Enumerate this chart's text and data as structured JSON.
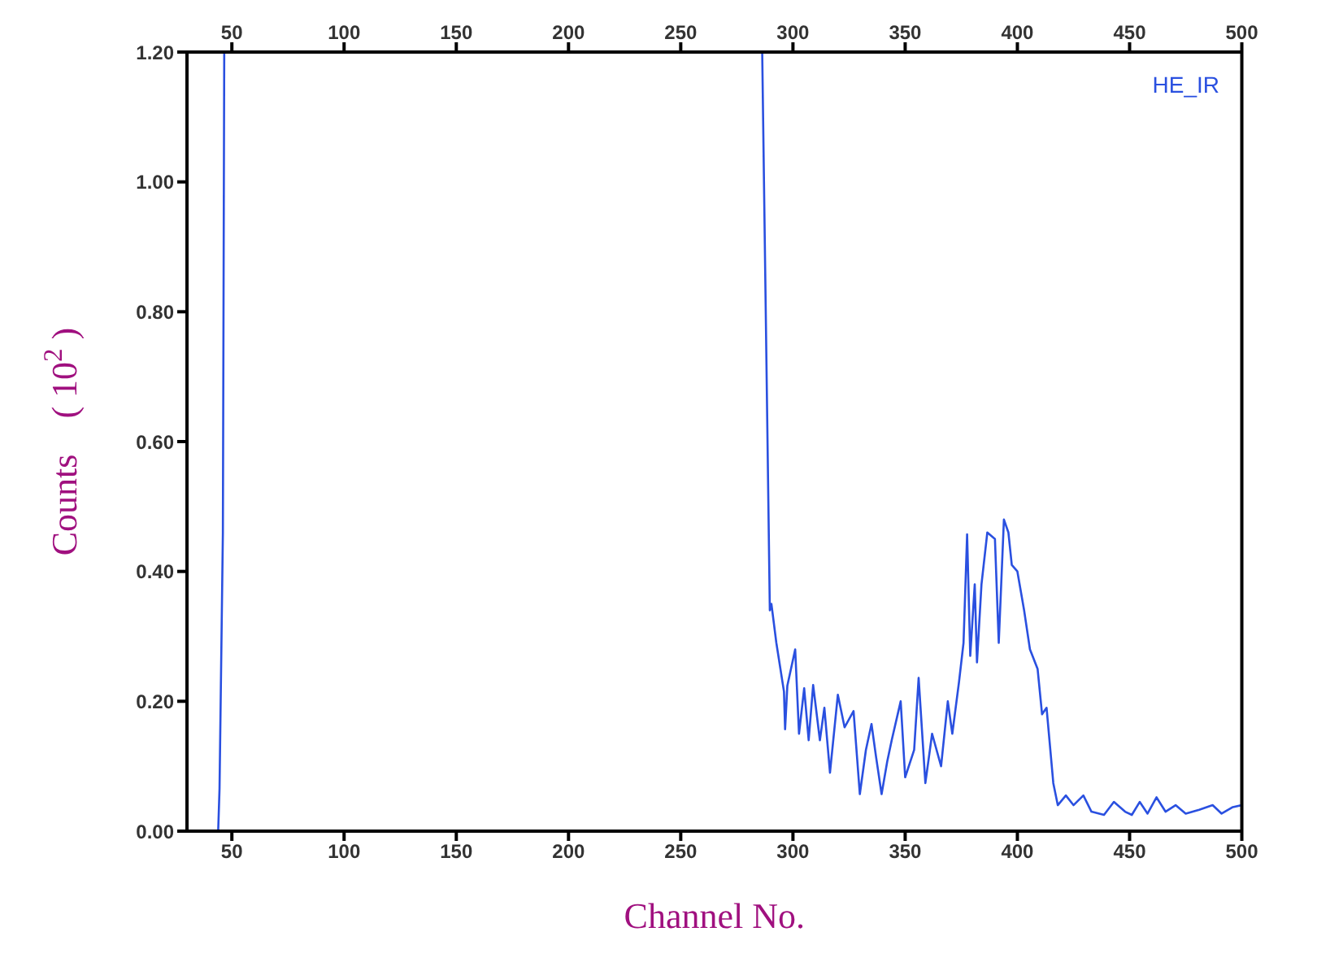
{
  "chart_data": {
    "type": "line",
    "xlabel": "Channel No.",
    "ylabel": "Counts    ( 10$^{2}$ )",
    "legend": "top right",
    "grid": false,
    "marker": "none",
    "line_style": "solid",
    "xlim": [
      30,
      500
    ],
    "xticks": [
      50,
      100,
      150,
      200,
      250,
      300,
      350,
      400,
      450,
      500
    ],
    "x2lim": [
      30,
      500
    ],
    "x2ticks": [
      50,
      100,
      150,
      200,
      250,
      300,
      350,
      400,
      450,
      500
    ],
    "ylim": [
      0,
      1.2
    ],
    "yticks": [
      {
        "value": 0,
        "label": "0.00"
      },
      {
        "value": 0.2,
        "label": "0.20"
      },
      {
        "value": 0.4,
        "label": "0.40"
      },
      {
        "value": 0.6,
        "label": "0.60"
      },
      {
        "value": 0.8,
        "label": "0.80"
      },
      {
        "value": 1,
        "label": "1.00"
      },
      {
        "value": 1.2,
        "label": "1.20"
      }
    ],
    "series": [
      {
        "name": "HE_IR",
        "color": "#2a50e0",
        "x": [
          42,
          43.9,
          44.5,
          46,
          46.6,
          100,
          286.3,
          289.7,
          290.4,
          292.6,
          296,
          296.5,
          297.5,
          301,
          302.7,
          305,
          307,
          309,
          312,
          314,
          316.5,
          320,
          323,
          327,
          329.8,
          332.5,
          335,
          337,
          339.5,
          342,
          344,
          348,
          350,
          354,
          356,
          359,
          362,
          366,
          369,
          371,
          374,
          376,
          377.6,
          379,
          381,
          382,
          384,
          386.6,
          390,
          391.7,
          394,
          396,
          397.5,
          400,
          403,
          405.6,
          409,
          411,
          413,
          416,
          418,
          421.6,
          425,
          429.4,
          433,
          438.6,
          443,
          448,
          451,
          454.5,
          458,
          462,
          466,
          470.5,
          475,
          481,
          487,
          491,
          496,
          500
        ],
        "values": [
          0,
          0,
          0.065,
          0.46,
          1.2,
          null,
          1.2,
          0.34,
          0.35,
          0.29,
          0.215,
          0.157,
          0.224,
          0.28,
          0.15,
          0.22,
          0.14,
          0.225,
          0.14,
          0.19,
          0.09,
          0.21,
          0.16,
          0.185,
          0.057,
          0.125,
          0.165,
          0.115,
          0.057,
          0.107,
          0.14,
          0.2,
          0.083,
          0.125,
          0.236,
          0.074,
          0.15,
          0.1,
          0.2,
          0.15,
          0.23,
          0.29,
          0.457,
          0.27,
          0.38,
          0.26,
          0.38,
          0.46,
          0.45,
          0.29,
          0.48,
          0.46,
          0.41,
          0.4,
          0.34,
          0.28,
          0.25,
          0.18,
          0.19,
          0.074,
          0.04,
          0.055,
          0.04,
          0.055,
          0.03,
          0.025,
          0.045,
          0.03,
          0.025,
          0.045,
          0.027,
          0.052,
          0.03,
          0.04,
          0.027,
          0.033,
          0.04,
          0.027,
          0.037,
          0.04
        ]
      }
    ]
  }
}
